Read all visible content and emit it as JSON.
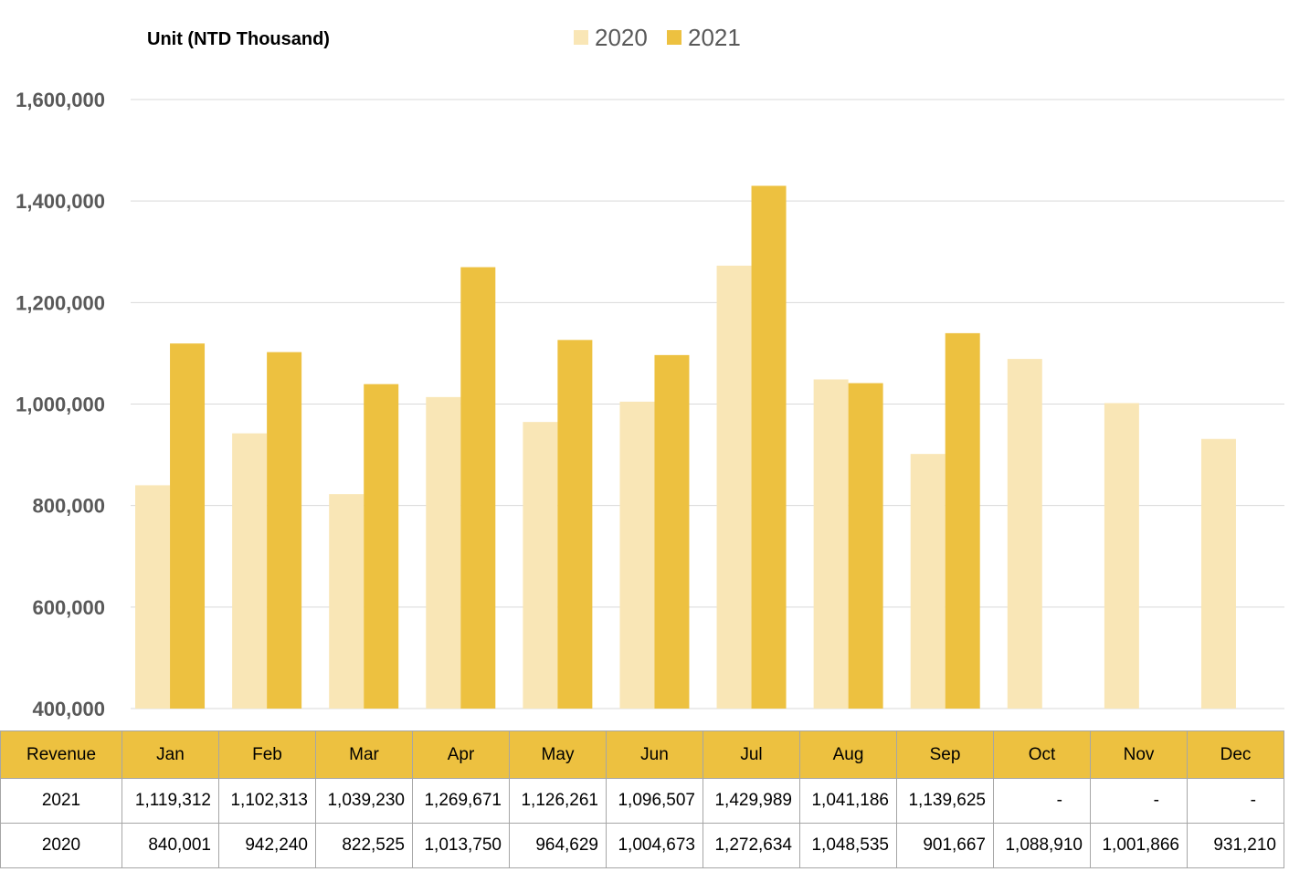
{
  "chart_data": {
    "type": "bar",
    "unit_label": "Unit (NTD  Thousand)",
    "categories": [
      "Jan",
      "Feb",
      "Mar",
      "Apr",
      "May",
      "Jun",
      "Jul",
      "Aug",
      "Sep",
      "Oct",
      "Nov",
      "Dec"
    ],
    "series": [
      {
        "name": "2020",
        "color": "#f9e6b6",
        "values": [
          840001,
          942240,
          822525,
          1013750,
          964629,
          1004673,
          1272634,
          1048535,
          901667,
          1088910,
          1001866,
          931210
        ]
      },
      {
        "name": "2021",
        "color": "#edc140",
        "values": [
          1119312,
          1102313,
          1039230,
          1269671,
          1126261,
          1096507,
          1429989,
          1041186,
          1139625,
          null,
          null,
          null
        ]
      }
    ],
    "ylim": [
      400000,
      1600000
    ],
    "yticks": [
      400000,
      600000,
      800000,
      1000000,
      1200000,
      1400000,
      1600000
    ],
    "ytick_labels": [
      "400,000",
      "600,000",
      "800,000",
      "1,000,000",
      "1,200,000",
      "1,400,000",
      "1,600,000"
    ],
    "grid": true,
    "legend_position": "top-center"
  },
  "table": {
    "header_label": "Revenue",
    "months": [
      "Jan",
      "Feb",
      "Mar",
      "Apr",
      "May",
      "Jun",
      "Jul",
      "Aug",
      "Sep",
      "Oct",
      "Nov",
      "Dec"
    ],
    "rows": [
      {
        "label": "2021",
        "values": [
          "1,119,312",
          "1,102,313",
          "1,039,230",
          "1,269,671",
          "1,126,261",
          "1,096,507",
          "1,429,989",
          "1,041,186",
          "1,139,625",
          "-",
          "-",
          "-"
        ]
      },
      {
        "label": "2020",
        "values": [
          "840,001",
          "942,240",
          "822,525",
          "1,013,750",
          "964,629",
          "1,004,673",
          "1,272,634",
          "1,048,535",
          "901,667",
          "1,088,910",
          "1,001,866",
          "931,210"
        ]
      }
    ],
    "header_color": "#edc140"
  }
}
